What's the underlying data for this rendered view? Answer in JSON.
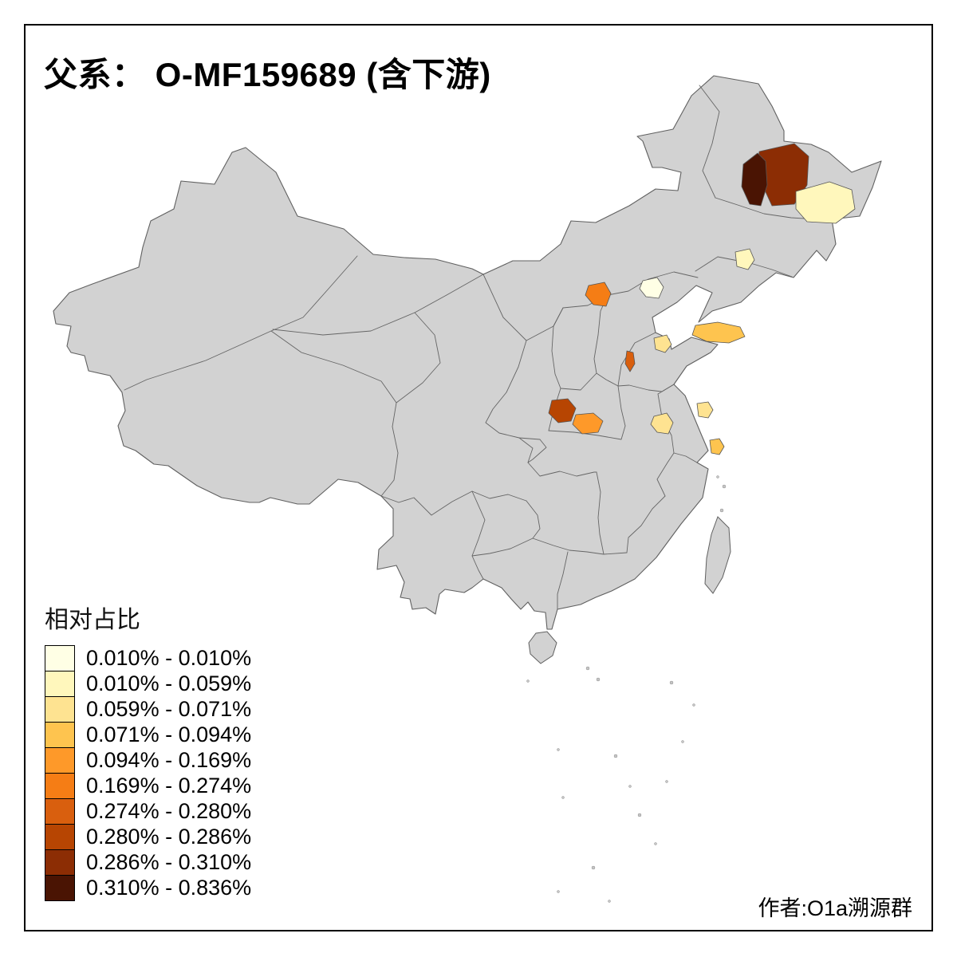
{
  "page": {
    "background": "#ffffff",
    "frame_color": "#000000"
  },
  "title": {
    "text": "父系： O-MF159689 (含下游)"
  },
  "map": {
    "colors": {
      "land": "#d2d2d2",
      "border": "#606060",
      "islet": "#c6c6c6"
    },
    "regions": [
      {
        "id": "region-1",
        "class_index": 8
      },
      {
        "id": "region-2",
        "class_index": 9
      },
      {
        "id": "region-3",
        "class_index": 1
      },
      {
        "id": "region-4",
        "class_index": 1
      },
      {
        "id": "region-5",
        "class_index": 0
      },
      {
        "id": "region-6",
        "class_index": 5
      },
      {
        "id": "region-7",
        "class_index": 3
      },
      {
        "id": "region-8",
        "class_index": 2
      },
      {
        "id": "region-9",
        "class_index": 6
      },
      {
        "id": "region-10",
        "class_index": 7
      },
      {
        "id": "region-11",
        "class_index": 4
      },
      {
        "id": "region-12",
        "class_index": 2
      },
      {
        "id": "region-13",
        "class_index": 2
      },
      {
        "id": "region-14",
        "class_index": 3
      }
    ]
  },
  "legend": {
    "title": "相对占比",
    "items": [
      {
        "label": "0.010% - 0.010%",
        "color": "#FFFFE5"
      },
      {
        "label": "0.010% - 0.059%",
        "color": "#FFF7BC"
      },
      {
        "label": "0.059% - 0.071%",
        "color": "#FEE391"
      },
      {
        "label": "0.071% - 0.094%",
        "color": "#FEC44F"
      },
      {
        "label": "0.094% - 0.169%",
        "color": "#FE9929"
      },
      {
        "label": "0.169% - 0.274%",
        "color": "#F57D15"
      },
      {
        "label": "0.274% - 0.280%",
        "color": "#D95F0E"
      },
      {
        "label": "0.280% - 0.286%",
        "color": "#B74502"
      },
      {
        "label": "0.286% - 0.310%",
        "color": "#8C2D04"
      },
      {
        "label": "0.310% - 0.836%",
        "color": "#4A1403"
      }
    ]
  },
  "credit": {
    "text": "作者:O1a溯源群"
  }
}
